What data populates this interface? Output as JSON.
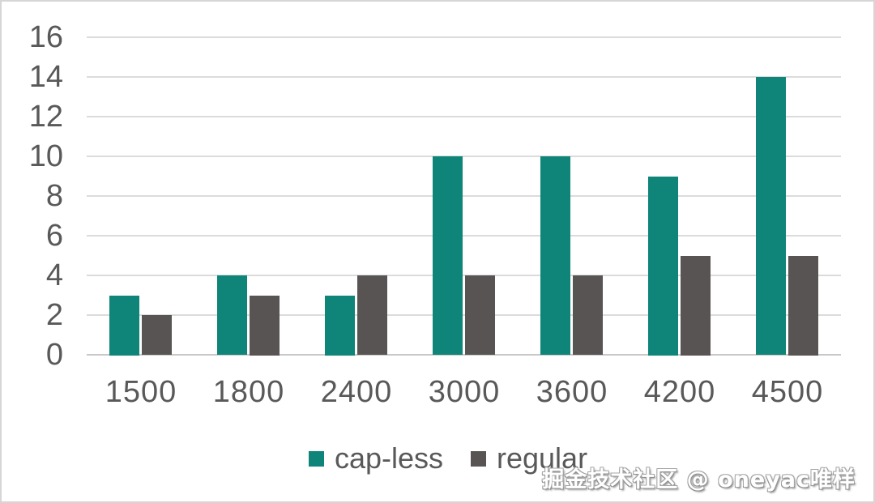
{
  "chart_data": {
    "type": "bar",
    "title": "",
    "xlabel": "",
    "ylabel": "",
    "categories": [
      "1500",
      "1800",
      "2400",
      "3000",
      "3600",
      "4200",
      "4500"
    ],
    "series": [
      {
        "name": "cap-less",
        "color": "#0E8578",
        "values": [
          3,
          4,
          3,
          10,
          10,
          9,
          14
        ]
      },
      {
        "name": "regular",
        "color": "#595454",
        "values": [
          2,
          3,
          4,
          4,
          4,
          5,
          5
        ]
      }
    ],
    "ylim": [
      0,
      16
    ],
    "yticks": [
      0,
      2,
      4,
      6,
      8,
      10,
      12,
      14,
      16
    ],
    "grid": true,
    "gridline_color": "#DBDBDB",
    "baseline_color": "#C8C8C8",
    "axis_text_color": "#595959",
    "legend_position": "bottom"
  },
  "legend": {
    "items": [
      {
        "label": "cap-less",
        "color": "#0E8578"
      },
      {
        "label": "regular",
        "color": "#595454"
      }
    ]
  },
  "watermark": {
    "text": "掘金技术社区 @ oneyac唯样"
  }
}
